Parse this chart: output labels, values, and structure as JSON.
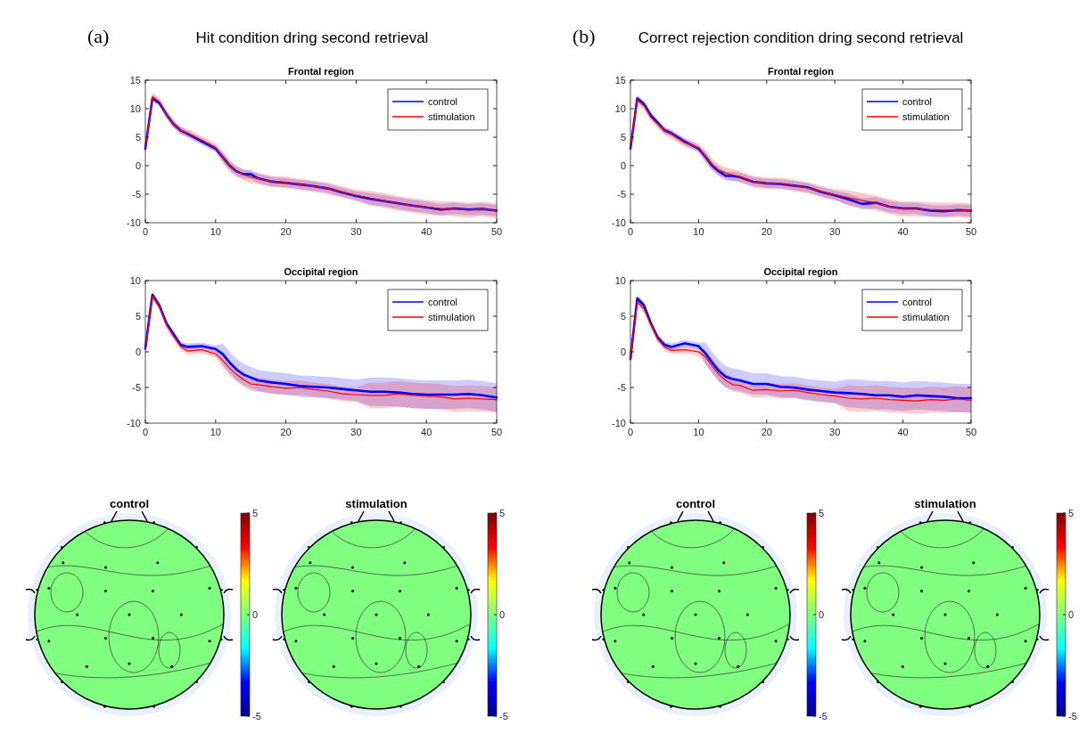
{
  "chart_data": [
    {
      "type": "line",
      "title": "Frontal region",
      "x": [
        0,
        1,
        2,
        3,
        4,
        5,
        6,
        8,
        10,
        11,
        12,
        13,
        14,
        15,
        16,
        18,
        20,
        22,
        24,
        26,
        28,
        30,
        32,
        34,
        36,
        38,
        40,
        42,
        44,
        46,
        48,
        50
      ],
      "xlim": [
        0,
        50
      ],
      "xticks": [
        0,
        10,
        20,
        30,
        40,
        50
      ],
      "ylim": [
        -10,
        15
      ],
      "yticks": [
        -10,
        -5,
        0,
        5,
        10,
        15
      ],
      "legend": "top right",
      "annotations": [
        "(a)",
        "Hit condition dring second retrieval"
      ],
      "series": [
        {
          "name": "control",
          "color": "#0000ff",
          "values": [
            3,
            11.8,
            11,
            9,
            7.3,
            6.2,
            5.6,
            4.3,
            3,
            1.5,
            0,
            -1,
            -1.5,
            -1.5,
            -2.2,
            -2.8,
            -3,
            -3.3,
            -3.6,
            -4,
            -4.7,
            -5.3,
            -5.8,
            -6.2,
            -6.6,
            -7,
            -7.3,
            -7.7,
            -7.5,
            -7.7,
            -7.6,
            -7.9
          ],
          "lower": [
            2.4,
            11.2,
            10.4,
            8.4,
            6.7,
            5.6,
            5,
            3.7,
            2.4,
            0.7,
            -0.8,
            -1.8,
            -2.3,
            -2.3,
            -3,
            -3.6,
            -3.8,
            -4.1,
            -4.4,
            -4.8,
            -5.5,
            -6.1,
            -6.8,
            -7.2,
            -7.6,
            -8,
            -8.3,
            -8.7,
            -8.5,
            -8.7,
            -8.6,
            -8.9
          ],
          "upper": [
            3.6,
            12.4,
            11.6,
            9.6,
            7.9,
            6.8,
            6.2,
            4.9,
            3.6,
            2.3,
            0.8,
            -0.2,
            -0.7,
            -0.7,
            -1.4,
            -2,
            -2.2,
            -2.5,
            -2.8,
            -3.2,
            -3.9,
            -4.5,
            -4.8,
            -5.2,
            -5.6,
            -6,
            -6.3,
            -6.7,
            -6.5,
            -6.7,
            -6.6,
            -6.9
          ]
        },
        {
          "name": "stimulation",
          "color": "#ff0000",
          "values": [
            2.8,
            12.1,
            11.2,
            9,
            7.3,
            6.2,
            5.7,
            4.5,
            3.2,
            1.5,
            0,
            -1,
            -1.6,
            -2,
            -2.2,
            -2.8,
            -2.9,
            -3.3,
            -3.6,
            -4,
            -4.6,
            -5.2,
            -5.7,
            -6.1,
            -6.6,
            -7,
            -7.3,
            -7.5,
            -7.6,
            -7.8,
            -7.6,
            -7.9
          ],
          "lower": [
            2.1,
            11.4,
            10.5,
            8.3,
            6.6,
            5.5,
            5,
            3.8,
            2.5,
            0.5,
            -1,
            -2,
            -2.6,
            -3,
            -3.2,
            -3.8,
            -3.9,
            -4.3,
            -4.6,
            -5,
            -5.6,
            -6.2,
            -7,
            -7.4,
            -7.9,
            -8.3,
            -8.6,
            -8.8,
            -8.9,
            -9.1,
            -8.9,
            -9.2
          ],
          "upper": [
            3.5,
            12.8,
            11.9,
            9.7,
            8,
            6.9,
            6.4,
            5.2,
            3.9,
            2.5,
            1,
            0,
            -0.6,
            -1,
            -1.2,
            -1.8,
            -1.9,
            -2.3,
            -2.6,
            -3,
            -3.6,
            -4.2,
            -4.4,
            -4.8,
            -5.3,
            -5.7,
            -6,
            -6.2,
            -6.3,
            -6.5,
            -6.3,
            -6.6
          ]
        }
      ]
    },
    {
      "type": "line",
      "title": "Frontal region",
      "x": [
        0,
        1,
        2,
        3,
        4,
        5,
        6,
        8,
        10,
        11,
        12,
        13,
        14,
        15,
        16,
        18,
        20,
        22,
        24,
        26,
        28,
        30,
        32,
        34,
        36,
        38,
        40,
        42,
        44,
        46,
        48,
        50
      ],
      "xlim": [
        0,
        50
      ],
      "xticks": [
        0,
        10,
        20,
        30,
        40,
        50
      ],
      "ylim": [
        -10,
        15
      ],
      "yticks": [
        -10,
        -5,
        0,
        5,
        10,
        15
      ],
      "legend": "top right",
      "annotations": [
        "(b)",
        "Correct rejection condition dring second retrieval"
      ],
      "series": [
        {
          "name": "control",
          "color": "#0000ff",
          "values": [
            3,
            11.8,
            10.8,
            8.8,
            7.5,
            6.2,
            5.7,
            4.2,
            3,
            1.6,
            0,
            -1,
            -1.8,
            -1.8,
            -2,
            -2.8,
            -3.1,
            -3.2,
            -3.5,
            -3.8,
            -4.6,
            -5.2,
            -5.9,
            -6.7,
            -6.5,
            -7.2,
            -7.5,
            -7.5,
            -7.9,
            -8,
            -7.8,
            -7.9
          ],
          "lower": [
            2.4,
            11.2,
            10.2,
            8.2,
            6.9,
            5.6,
            5.1,
            3.6,
            2.4,
            0.8,
            -0.8,
            -1.8,
            -2.6,
            -2.6,
            -2.8,
            -3.6,
            -3.9,
            -4,
            -4.3,
            -4.6,
            -5.4,
            -6,
            -6.9,
            -7.7,
            -7.5,
            -8.2,
            -8.5,
            -8.5,
            -8.9,
            -9,
            -8.8,
            -8.9
          ],
          "upper": [
            3.6,
            12.4,
            11.4,
            9.4,
            8.1,
            6.8,
            6.3,
            4.8,
            3.6,
            2.4,
            0.8,
            -0.2,
            -1,
            -1,
            -1.2,
            -2,
            -2.3,
            -2.4,
            -2.7,
            -3,
            -3.8,
            -4.4,
            -4.9,
            -5.7,
            -5.5,
            -6.2,
            -6.5,
            -6.5,
            -6.9,
            -7,
            -6.8,
            -6.9
          ]
        },
        {
          "name": "stimulation",
          "color": "#ff0000",
          "values": [
            3,
            11.5,
            10.5,
            8.5,
            7.3,
            6.1,
            5.5,
            4,
            3.2,
            1.6,
            0.2,
            -0.8,
            -1.3,
            -1.6,
            -1.9,
            -2.8,
            -3.1,
            -3.1,
            -3.5,
            -3.9,
            -4.5,
            -5.1,
            -5.6,
            -6.1,
            -6.5,
            -7.2,
            -7.6,
            -7.6,
            -7.7,
            -7.8,
            -7.8,
            -7.9
          ],
          "lower": [
            2.3,
            10.8,
            9.8,
            7.8,
            6.6,
            5.4,
            4.8,
            3.3,
            2.5,
            0.6,
            -0.8,
            -1.8,
            -2.3,
            -2.6,
            -2.9,
            -3.8,
            -4.1,
            -4.1,
            -4.5,
            -4.9,
            -5.5,
            -6.1,
            -6.9,
            -7.4,
            -7.8,
            -8.5,
            -8.9,
            -8.9,
            -9,
            -9.1,
            -9.1,
            -9.2
          ],
          "upper": [
            3.7,
            12.2,
            11.2,
            9.2,
            8,
            6.8,
            6.2,
            4.7,
            3.9,
            2.6,
            1.2,
            0.2,
            -0.3,
            -0.6,
            -0.9,
            -1.8,
            -2.1,
            -2.1,
            -2.5,
            -2.9,
            -3.5,
            -4.1,
            -4.3,
            -4.8,
            -5.2,
            -5.9,
            -6.3,
            -6.3,
            -6.4,
            -6.5,
            -6.5,
            -6.6
          ]
        }
      ]
    },
    {
      "type": "line",
      "title": "Occipital region",
      "x": [
        0,
        1,
        2,
        3,
        4,
        5,
        6,
        8,
        10,
        11,
        12,
        13,
        14,
        15,
        16,
        18,
        20,
        22,
        24,
        26,
        28,
        30,
        32,
        34,
        36,
        38,
        40,
        42,
        44,
        46,
        48,
        50
      ],
      "xlim": [
        0,
        50
      ],
      "xticks": [
        0,
        10,
        20,
        30,
        40,
        50
      ],
      "ylim": [
        -10,
        10
      ],
      "yticks": [
        -10,
        -5,
        0,
        5,
        10
      ],
      "legend": "top right",
      "series": [
        {
          "name": "control",
          "color": "#0000ff",
          "values": [
            0.5,
            8,
            6.5,
            4,
            2.5,
            1,
            0.7,
            0.8,
            0.4,
            -0.3,
            -1.5,
            -2.5,
            -3.2,
            -3.6,
            -4,
            -4.3,
            -4.5,
            -4.8,
            -4.9,
            -5,
            -5.2,
            -5.4,
            -5.6,
            -5.6,
            -5.7,
            -5.9,
            -6,
            -6,
            -6,
            -5.9,
            -6.1,
            -6.4
          ],
          "lower": [
            0,
            7.5,
            6,
            3.5,
            2,
            0.5,
            0.2,
            0.3,
            -0.1,
            -1.8,
            -3,
            -4,
            -4.7,
            -5.1,
            -5.5,
            -5.8,
            -6,
            -6.3,
            -6.4,
            -6.5,
            -6.7,
            -6.9,
            -7.6,
            -7.6,
            -7.7,
            -7.9,
            -8,
            -8,
            -8,
            -7.9,
            -8.1,
            -8.4
          ],
          "upper": [
            1,
            8.5,
            7,
            4.5,
            3,
            1.5,
            1.2,
            1.3,
            0.9,
            1.2,
            0,
            -1,
            -1.7,
            -2.1,
            -2.5,
            -2.8,
            -3,
            -3.3,
            -3.4,
            -3.5,
            -3.7,
            -3.9,
            -3.6,
            -3.6,
            -3.7,
            -3.9,
            -4,
            -4,
            -4,
            -3.9,
            -4.1,
            -4.4
          ]
        },
        {
          "name": "stimulation",
          "color": "#ff0000",
          "values": [
            0.3,
            7.8,
            6.3,
            3.8,
            2.2,
            0.8,
            0.1,
            0.3,
            -0.3,
            -1.2,
            -2.3,
            -3.2,
            -3.9,
            -4.5,
            -4.6,
            -4.9,
            -5.1,
            -5,
            -5.3,
            -5.5,
            -5.9,
            -6,
            -6.1,
            -6.1,
            -5.9,
            -6.1,
            -6.2,
            -6.3,
            -6.6,
            -6.5,
            -6.6,
            -6.7
          ],
          "lower": [
            -0.2,
            7.3,
            5.8,
            3.3,
            1.7,
            0.3,
            -0.4,
            -0.2,
            -0.8,
            -2.2,
            -3.3,
            -4.2,
            -4.9,
            -5.5,
            -5.6,
            -5.9,
            -6.1,
            -6,
            -6.3,
            -6.5,
            -6.9,
            -7,
            -7.9,
            -7.9,
            -7.7,
            -7.9,
            -8,
            -8.1,
            -8.4,
            -8.3,
            -8.4,
            -8.5
          ],
          "upper": [
            0.8,
            8.3,
            6.8,
            4.3,
            2.7,
            1.3,
            0.6,
            0.8,
            0.2,
            -0.2,
            -1.3,
            -2.2,
            -2.9,
            -3.5,
            -3.6,
            -3.9,
            -4.1,
            -4,
            -4.3,
            -4.5,
            -4.9,
            -5,
            -4.3,
            -4.3,
            -4.1,
            -4.3,
            -4.4,
            -4.5,
            -4.8,
            -4.7,
            -4.8,
            -4.9
          ]
        }
      ]
    },
    {
      "type": "line",
      "title": "Occipital region",
      "x": [
        0,
        1,
        2,
        3,
        4,
        5,
        6,
        8,
        10,
        11,
        12,
        13,
        14,
        15,
        16,
        18,
        20,
        22,
        24,
        26,
        28,
        30,
        32,
        34,
        36,
        38,
        40,
        42,
        44,
        46,
        48,
        50
      ],
      "xlim": [
        0,
        50
      ],
      "xticks": [
        0,
        10,
        20,
        30,
        40,
        50
      ],
      "ylim": [
        -10,
        10
      ],
      "yticks": [
        -10,
        -5,
        0,
        5,
        10
      ],
      "legend": "top right",
      "series": [
        {
          "name": "control",
          "color": "#0000ff",
          "values": [
            -1,
            7.5,
            6.5,
            4,
            2,
            1,
            0.7,
            1.2,
            0.8,
            -0.2,
            -1.5,
            -2.7,
            -3.5,
            -3.8,
            -4,
            -4.5,
            -4.5,
            -4.9,
            -5,
            -5.3,
            -5.5,
            -5.7,
            -5.8,
            -5.9,
            -6.1,
            -6.1,
            -6.3,
            -6.1,
            -6.2,
            -6.3,
            -6.5,
            -6.5
          ],
          "lower": [
            -1.5,
            7,
            6,
            3.5,
            1.5,
            0.5,
            0.2,
            0.7,
            0.3,
            -1.7,
            -3,
            -4.2,
            -5,
            -5.3,
            -5.5,
            -6,
            -6,
            -6.4,
            -6.5,
            -6.8,
            -7,
            -7.2,
            -7.8,
            -7.9,
            -8.1,
            -8.1,
            -8.3,
            -8.1,
            -8.2,
            -8.3,
            -8.5,
            -8.5
          ],
          "upper": [
            -0.5,
            8,
            7,
            4.5,
            2.5,
            1.5,
            1.2,
            1.7,
            1.3,
            1.3,
            0,
            -1.2,
            -2,
            -2.3,
            -2.5,
            -3,
            -3,
            -3.4,
            -3.5,
            -3.8,
            -4,
            -4.2,
            -3.8,
            -3.9,
            -4.1,
            -4.1,
            -4.3,
            -4.1,
            -4.2,
            -4.3,
            -4.5,
            -4.5
          ]
        },
        {
          "name": "stimulation",
          "color": "#ff0000",
          "values": [
            -1,
            7,
            6,
            3.8,
            1.8,
            0.7,
            0.2,
            0.3,
            0,
            -0.7,
            -2,
            -3.2,
            -4,
            -4.6,
            -4.7,
            -5.4,
            -5.3,
            -5.5,
            -5.4,
            -5.7,
            -6,
            -6.2,
            -6.5,
            -6.6,
            -6.5,
            -6.7,
            -6.8,
            -6.9,
            -6.7,
            -6.8,
            -6.6,
            -6.8
          ],
          "lower": [
            -1.5,
            6.5,
            5.5,
            3.3,
            1.3,
            0.2,
            -0.3,
            -0.2,
            -0.5,
            -1.7,
            -3,
            -4.2,
            -5,
            -5.6,
            -5.7,
            -6.4,
            -6.3,
            -6.5,
            -6.4,
            -6.7,
            -7,
            -7.2,
            -8.3,
            -8.4,
            -8.3,
            -8.5,
            -8.6,
            -8.7,
            -8.5,
            -8.6,
            -8.4,
            -8.6
          ],
          "upper": [
            -0.5,
            7.5,
            6.5,
            4.3,
            2.3,
            1.2,
            0.7,
            0.8,
            0.5,
            0.3,
            -1,
            -2.2,
            -3,
            -3.6,
            -3.7,
            -4.4,
            -4.3,
            -4.5,
            -4.4,
            -4.7,
            -5,
            -5.2,
            -4.7,
            -4.8,
            -4.7,
            -4.9,
            -5,
            -5.1,
            -4.9,
            -5,
            -4.8,
            -5
          ]
        }
      ]
    },
    {
      "type": "other",
      "title": "control",
      "color": "#80ff80",
      "annotations": [
        "5",
        "0",
        "-5"
      ]
    },
    {
      "type": "other",
      "title": "stimulation",
      "color": "#80ff80",
      "annotations": [
        "5",
        "0",
        "-5"
      ]
    },
    {
      "type": "other",
      "title": "control",
      "color": "#80ff80",
      "annotations": [
        "5",
        "0",
        "-5"
      ]
    },
    {
      "type": "other",
      "title": "stimulation",
      "color": "#80ff80",
      "annotations": [
        "5",
        "0",
        "-5"
      ]
    }
  ]
}
